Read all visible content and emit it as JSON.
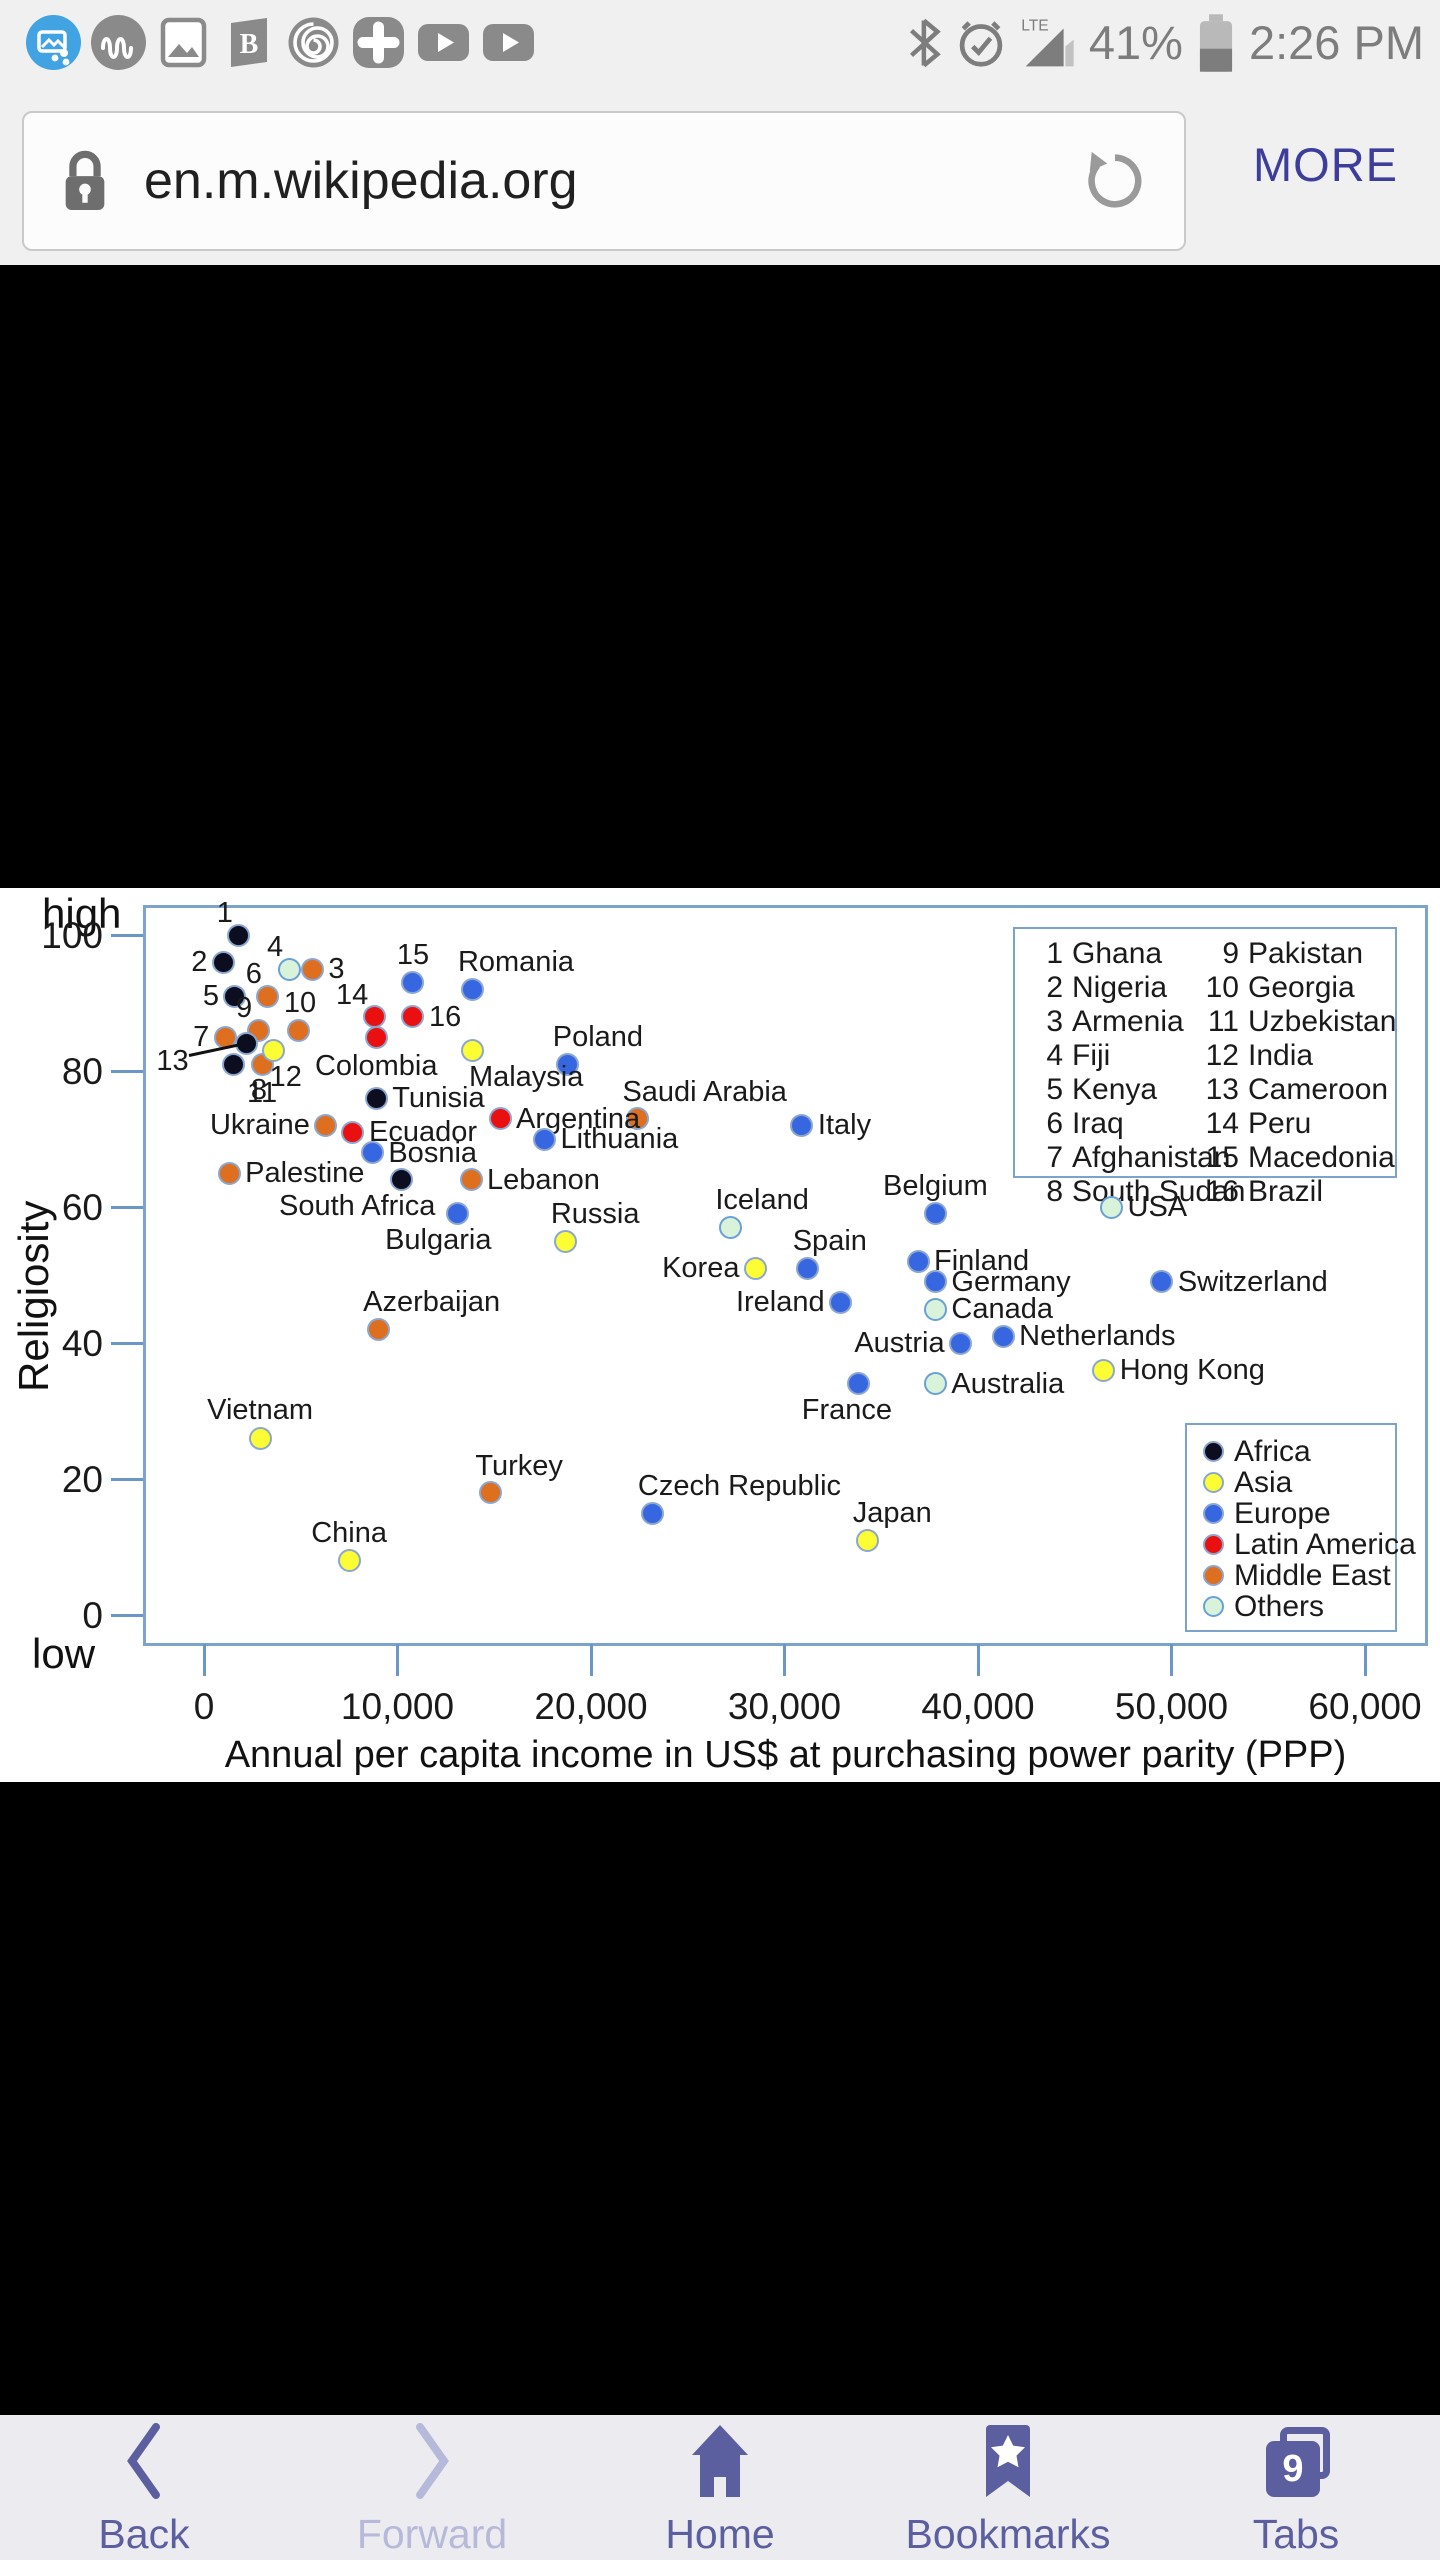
{
  "status_bar": {
    "time": "2:26 PM",
    "battery_percent": "41%",
    "network": "LTE",
    "icons_left": [
      "screenshot-share",
      "music-wave",
      "gallery",
      "flipboard-b",
      "spiral",
      "health-plus",
      "video-play",
      "video-play-2"
    ],
    "icons_right": [
      "bluetooth",
      "alarm",
      "signal-lte",
      "battery"
    ]
  },
  "browser": {
    "url": "en.m.wikipedia.org",
    "more_label": "MORE"
  },
  "nav_bar": {
    "items": [
      {
        "label": "Back",
        "icon": "chevron-left",
        "enabled": true
      },
      {
        "label": "Forward",
        "icon": "chevron-right",
        "enabled": false
      },
      {
        "label": "Home",
        "icon": "home",
        "enabled": true
      },
      {
        "label": "Bookmarks",
        "icon": "bookmark-star",
        "enabled": true
      },
      {
        "label": "Tabs",
        "icon": "tabs",
        "enabled": true,
        "badge": "9"
      }
    ]
  },
  "chart_data": {
    "type": "scatter",
    "title": "",
    "xlabel": "Annual per capita income in US$ at purchasing power parity (PPP)",
    "ylabel": "Religiosity",
    "y_high_label": "high",
    "y_low_label": "low",
    "xlim": [
      0,
      64000
    ],
    "ylim": [
      0,
      107
    ],
    "grid": false,
    "x_ticks": [
      0,
      10000,
      20000,
      30000,
      40000,
      50000,
      60000
    ],
    "x_tick_labels": [
      "0",
      "10,000",
      "20,000",
      "30,000",
      "40,000",
      "50,000",
      "60,000"
    ],
    "y_ticks": [
      0,
      20,
      40,
      60,
      80,
      100
    ],
    "y_tick_labels": [
      "0",
      "20",
      "40",
      "60",
      "80",
      "100"
    ],
    "region_colors": {
      "Africa": "#0d0d20",
      "Asia": "#fdfd33",
      "Europe": "#3667e0",
      "Latin America": "#ea1010",
      "Middle East": "#dd6f1f",
      "Others": "#d8f3da"
    },
    "region_legend": [
      "Africa",
      "Asia",
      "Europe",
      "Latin America",
      "Middle East",
      "Others"
    ],
    "numbered_legend": [
      {
        "num": "1",
        "name": "Ghana"
      },
      {
        "num": "2",
        "name": "Nigeria"
      },
      {
        "num": "3",
        "name": "Armenia"
      },
      {
        "num": "4",
        "name": "Fiji"
      },
      {
        "num": "5",
        "name": "Kenya"
      },
      {
        "num": "6",
        "name": "Iraq"
      },
      {
        "num": "7",
        "name": "Afghanistan"
      },
      {
        "num": "8",
        "name": "South Sudan"
      },
      {
        "num": "9",
        "name": "Pakistan"
      },
      {
        "num": "10",
        "name": "Georgia"
      },
      {
        "num": "11",
        "name": "Uzbekistan"
      },
      {
        "num": "12",
        "name": "India"
      },
      {
        "num": "13",
        "name": "Cameroon"
      },
      {
        "num": "14",
        "name": "Peru"
      },
      {
        "num": "15",
        "name": "Macedonia"
      },
      {
        "num": "16",
        "name": "Brazil"
      }
    ],
    "points": [
      {
        "num": "1",
        "name": "Ghana",
        "income": 1800,
        "religiosity": 100,
        "region": "Africa",
        "label_pos": "above-left"
      },
      {
        "num": "2",
        "name": "Nigeria",
        "income": 1000,
        "religiosity": 96,
        "region": "Africa",
        "label_pos": "left"
      },
      {
        "num": "3",
        "name": "Armenia",
        "income": 5600,
        "religiosity": 95,
        "region": "Middle East",
        "label_pos": "right"
      },
      {
        "num": "4",
        "name": "Fiji",
        "income": 4400,
        "religiosity": 95,
        "region": "Others",
        "label_pos": "above-left"
      },
      {
        "num": "5",
        "name": "Kenya",
        "income": 1600,
        "religiosity": 91,
        "region": "Africa",
        "label_pos": "left"
      },
      {
        "num": "6",
        "name": "Iraq",
        "income": 3300,
        "religiosity": 91,
        "region": "Middle East",
        "label_pos": "above-left"
      },
      {
        "num": "7",
        "name": "Afghanistan",
        "income": 1100,
        "religiosity": 85,
        "region": "Middle East",
        "label_pos": "left"
      },
      {
        "num": "8",
        "name": "South Sudan",
        "income": 1500,
        "religiosity": 81,
        "region": "Africa",
        "label_pos": "below-left"
      },
      {
        "num": "9",
        "name": "Pakistan",
        "income": 2800,
        "religiosity": 86,
        "region": "Middle East",
        "label_pos": "above-left"
      },
      {
        "num": "10",
        "name": "Georgia",
        "income": 4900,
        "religiosity": 86,
        "region": "Middle East",
        "label_pos": "above-right"
      },
      {
        "num": "11",
        "name": "Uzbekistan",
        "income": 3000,
        "religiosity": 81,
        "region": "Middle East",
        "label_pos": "below"
      },
      {
        "num": "12",
        "name": "India",
        "income": 3600,
        "religiosity": 83,
        "region": "Asia",
        "label_pos": "below-right"
      },
      {
        "num": "13",
        "name": "Cameroon",
        "income": 2200,
        "religiosity": 84,
        "region": "Africa",
        "label_pos": "leader-left"
      },
      {
        "num": "14",
        "name": "Peru",
        "income": 8800,
        "religiosity": 88,
        "region": "Latin America",
        "label_pos": "above-left"
      },
      {
        "num": "15",
        "name": "Macedonia",
        "income": 10800,
        "religiosity": 93,
        "region": "Europe",
        "label_pos": "above"
      },
      {
        "num": "16",
        "name": "Brazil",
        "income": 10800,
        "religiosity": 88,
        "region": "Latin America",
        "label_pos": "right"
      },
      {
        "name": "Romania",
        "income": 13900,
        "religiosity": 92,
        "region": "Europe",
        "label_pos": "above-right"
      },
      {
        "name": "Poland",
        "income": 18800,
        "religiosity": 81,
        "region": "Europe",
        "label_pos": "above-right"
      },
      {
        "name": "Colombia",
        "income": 8900,
        "religiosity": 85,
        "region": "Latin America",
        "label_pos": "below"
      },
      {
        "name": "Malaysia",
        "income": 13900,
        "religiosity": 83,
        "region": "Asia",
        "label_pos": "below-right"
      },
      {
        "name": "Saudi Arabia",
        "income": 22400,
        "religiosity": 73,
        "region": "Middle East",
        "label_pos": "above-right"
      },
      {
        "name": "Tunisia",
        "income": 8900,
        "religiosity": 76,
        "region": "Africa",
        "label_pos": "right"
      },
      {
        "name": "Ukraine",
        "income": 6300,
        "religiosity": 72,
        "region": "Middle East",
        "label_pos": "left"
      },
      {
        "name": "Ecuador",
        "income": 7700,
        "religiosity": 71,
        "region": "Latin America",
        "label_pos": "right"
      },
      {
        "name": "Argentina",
        "income": 15300,
        "religiosity": 73,
        "region": "Latin America",
        "label_pos": "right"
      },
      {
        "name": "Italy",
        "income": 30900,
        "religiosity": 72,
        "region": "Europe",
        "label_pos": "right"
      },
      {
        "name": "Lithuania",
        "income": 17600,
        "religiosity": 70,
        "region": "Europe",
        "label_pos": "right"
      },
      {
        "name": "Bosnia",
        "income": 8700,
        "religiosity": 68,
        "region": "Europe",
        "label_pos": "right"
      },
      {
        "name": "Palestine",
        "income": 1300,
        "religiosity": 65,
        "region": "Middle East",
        "label_pos": "right"
      },
      {
        "name": "South Africa",
        "income": 10200,
        "religiosity": 64,
        "region": "Africa",
        "label_pos": "below-left"
      },
      {
        "name": "Lebanon",
        "income": 13800,
        "religiosity": 64,
        "region": "Middle East",
        "label_pos": "right"
      },
      {
        "name": "Bulgaria",
        "income": 13100,
        "religiosity": 59,
        "region": "Europe",
        "label_pos": "below-left"
      },
      {
        "name": "Russia",
        "income": 18700,
        "religiosity": 55,
        "region": "Asia",
        "label_pos": "above-right"
      },
      {
        "name": "Iceland",
        "income": 27200,
        "religiosity": 57,
        "region": "Others",
        "label_pos": "above-right"
      },
      {
        "name": "Belgium",
        "income": 37800,
        "religiosity": 59,
        "region": "Europe",
        "label_pos": "above"
      },
      {
        "name": "USA",
        "income": 46900,
        "religiosity": 60,
        "region": "Others",
        "label_pos": "right"
      },
      {
        "name": "Spain",
        "income": 31200,
        "religiosity": 51,
        "region": "Europe",
        "label_pos": "above-right"
      },
      {
        "name": "Korea",
        "income": 28500,
        "religiosity": 51,
        "region": "Asia",
        "label_pos": "left"
      },
      {
        "name": "Finland",
        "income": 36900,
        "religiosity": 52,
        "region": "Europe",
        "label_pos": "right"
      },
      {
        "name": "Germany",
        "income": 37800,
        "religiosity": 49,
        "region": "Europe",
        "label_pos": "right"
      },
      {
        "name": "Switzerland",
        "income": 49500,
        "religiosity": 49,
        "region": "Europe",
        "label_pos": "right"
      },
      {
        "name": "Ireland",
        "income": 32900,
        "religiosity": 46,
        "region": "Europe",
        "label_pos": "left"
      },
      {
        "name": "Canada",
        "income": 37800,
        "religiosity": 45,
        "region": "Others",
        "label_pos": "right"
      },
      {
        "name": "Azerbaijan",
        "income": 9000,
        "religiosity": 42,
        "region": "Middle East",
        "label_pos": "above-right"
      },
      {
        "name": "Austria",
        "income": 39100,
        "religiosity": 40,
        "region": "Europe",
        "label_pos": "left"
      },
      {
        "name": "Netherlands",
        "income": 41300,
        "religiosity": 41,
        "region": "Europe",
        "label_pos": "right"
      },
      {
        "name": "Hong Kong",
        "income": 46500,
        "religiosity": 36,
        "region": "Asia",
        "label_pos": "right"
      },
      {
        "name": "France",
        "income": 33800,
        "religiosity": 34,
        "region": "Europe",
        "label_pos": "below-left"
      },
      {
        "name": "Australia",
        "income": 37800,
        "religiosity": 34,
        "region": "Others",
        "label_pos": "right"
      },
      {
        "name": "Vietnam",
        "income": 2900,
        "religiosity": 26,
        "region": "Asia",
        "label_pos": "above"
      },
      {
        "name": "Turkey",
        "income": 14800,
        "religiosity": 18,
        "region": "Middle East",
        "label_pos": "above-right"
      },
      {
        "name": "Czech Republic",
        "income": 23200,
        "religiosity": 15,
        "region": "Europe",
        "label_pos": "above-right"
      },
      {
        "name": "China",
        "income": 7500,
        "religiosity": 8,
        "region": "Asia",
        "label_pos": "above"
      },
      {
        "name": "Japan",
        "income": 34300,
        "religiosity": 11,
        "region": "Asia",
        "label_pos": "above-right"
      }
    ]
  }
}
